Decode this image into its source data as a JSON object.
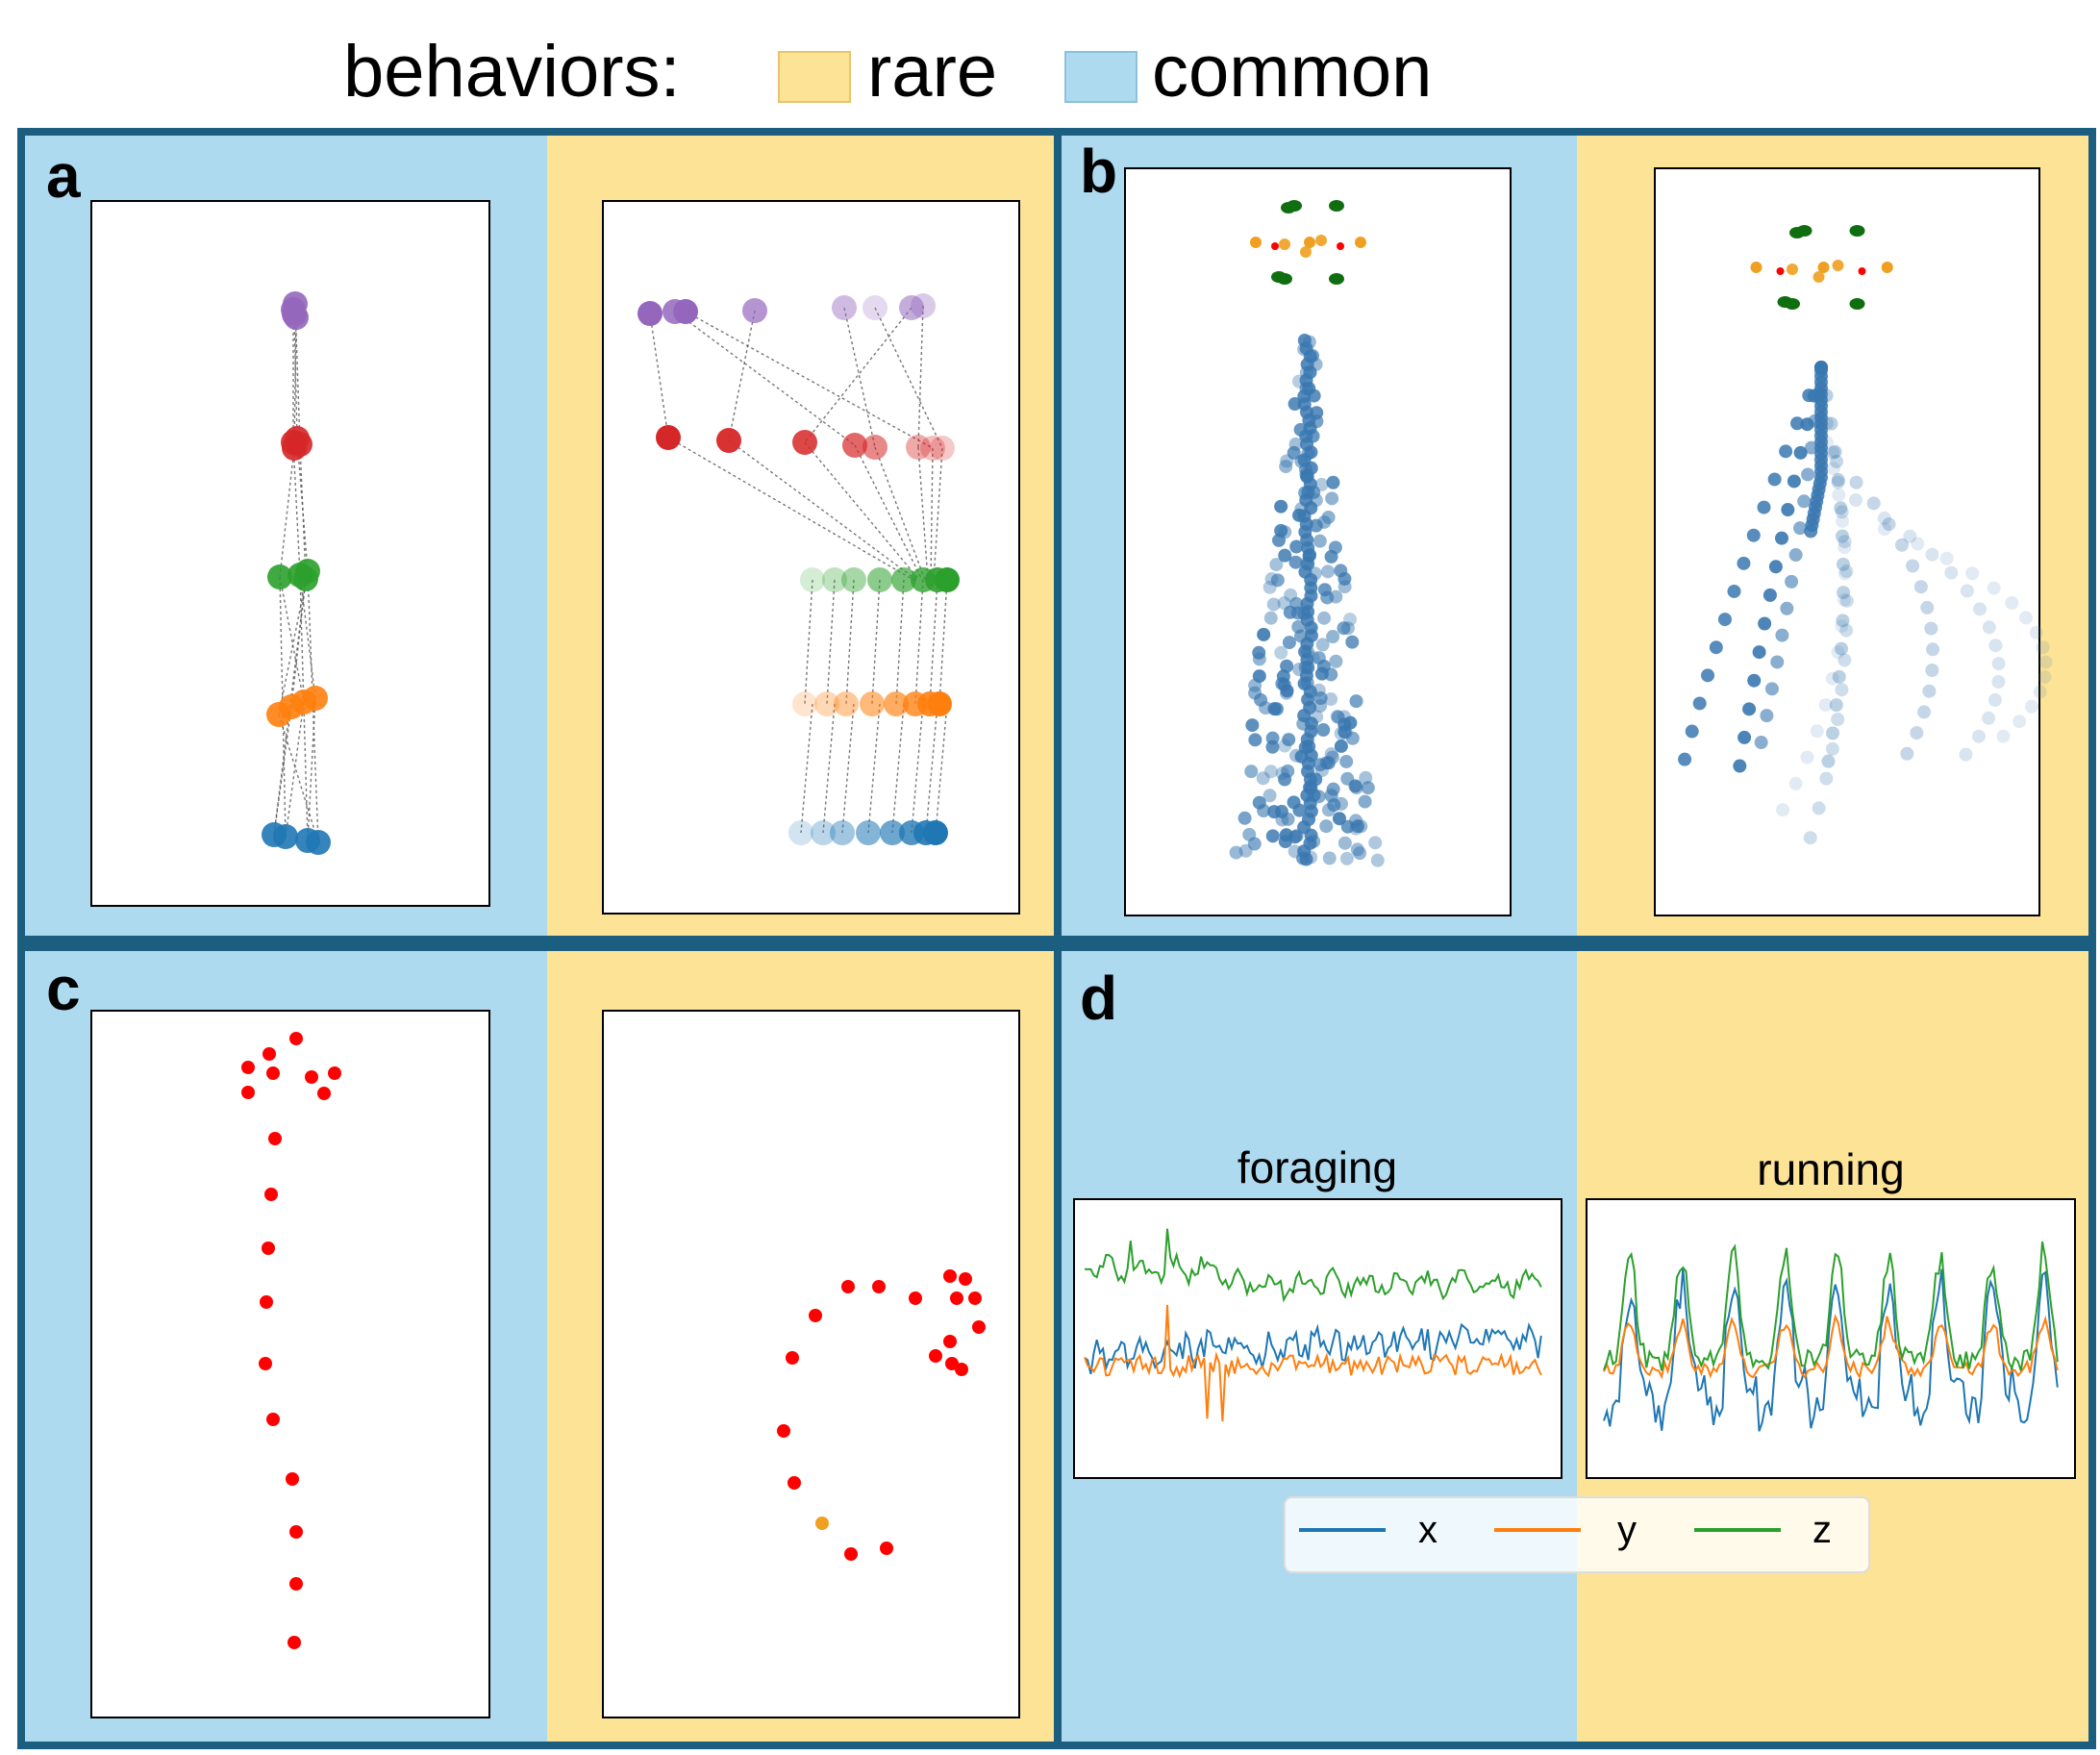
{
  "colors": {
    "rare": "#fde396",
    "common": "#aedaf0",
    "frame": "#1b5e80",
    "x": "#1f77b4",
    "y": "#ff7f0e",
    "z": "#2ca02c",
    "purple": "#9467bd",
    "red": "#d62728",
    "dot_red": "#ff0000",
    "dot_orange": "#f0a020",
    "dark_green": "#0f6e0f",
    "steel_blue": "#3a78b0"
  },
  "legend": {
    "title": "behaviors:",
    "rare_label": "rare",
    "common_label": "common"
  },
  "panels": {
    "a": {
      "label": "a"
    },
    "b": {
      "label": "b"
    },
    "c": {
      "label": "c"
    },
    "d": {
      "label": "d",
      "left_title": "foraging",
      "right_title": "running",
      "series_legend": [
        "x",
        "y",
        "z"
      ]
    }
  }
}
